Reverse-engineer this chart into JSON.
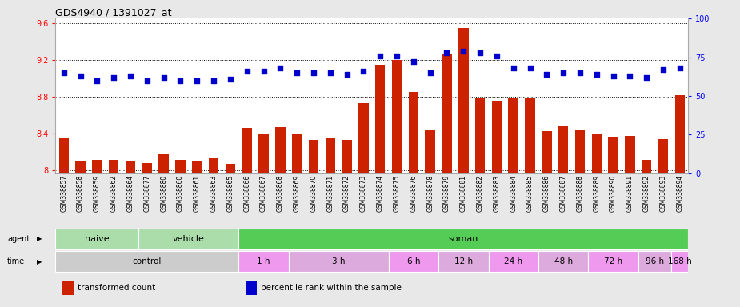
{
  "title": "GDS4940 / 1391027_at",
  "sample_labels": [
    "GSM338857",
    "GSM338858",
    "GSM338859",
    "GSM338862",
    "GSM338864",
    "GSM338877",
    "GSM338880",
    "GSM338860",
    "GSM338861",
    "GSM338863",
    "GSM338865",
    "GSM338866",
    "GSM338867",
    "GSM338868",
    "GSM338869",
    "GSM338870",
    "GSM338871",
    "GSM338872",
    "GSM338873",
    "GSM338874",
    "GSM338875",
    "GSM338876",
    "GSM338878",
    "GSM338879",
    "GSM338881",
    "GSM338882",
    "GSM338883",
    "GSM338884",
    "GSM338885",
    "GSM338886",
    "GSM338887",
    "GSM338888",
    "GSM338889",
    "GSM338890",
    "GSM338891",
    "GSM338892",
    "GSM338893",
    "GSM338894"
  ],
  "bar_values": [
    8.35,
    8.1,
    8.12,
    8.12,
    8.1,
    8.08,
    8.18,
    8.12,
    8.1,
    8.13,
    8.07,
    8.46,
    8.4,
    8.47,
    8.39,
    8.33,
    8.35,
    8.33,
    8.73,
    9.15,
    9.2,
    8.85,
    8.45,
    9.27,
    9.55,
    8.78,
    8.76,
    8.78,
    8.78,
    8.43,
    8.49,
    8.45,
    8.4,
    8.37,
    8.38,
    8.12,
    8.34,
    8.82
  ],
  "percentile_values": [
    65,
    63,
    60,
    62,
    63,
    60,
    62,
    60,
    60,
    60,
    61,
    66,
    66,
    68,
    65,
    65,
    65,
    64,
    66,
    76,
    76,
    72,
    65,
    78,
    79,
    78,
    76,
    68,
    68,
    64,
    65,
    65,
    64,
    63,
    63,
    62,
    67,
    68
  ],
  "bar_color": "#cc2200",
  "dot_color": "#0000cc",
  "ylim_left": [
    7.97,
    9.65
  ],
  "ylim_right": [
    0,
    100
  ],
  "yticks_left": [
    8.0,
    8.4,
    8.8,
    9.2,
    9.6
  ],
  "ytick_labels_left": [
    "8",
    "8.4",
    "8.8",
    "9.2",
    "9.6"
  ],
  "yticks_right": [
    0,
    25,
    50,
    75,
    100
  ],
  "ytick_labels_right": [
    "0",
    "25",
    "50",
    "75",
    "100"
  ],
  "agent_groups": [
    {
      "label": "naive",
      "start": 0,
      "end": 5,
      "color": "#aaddaa"
    },
    {
      "label": "vehicle",
      "start": 5,
      "end": 11,
      "color": "#aaddaa"
    },
    {
      "label": "soman",
      "start": 11,
      "end": 38,
      "color": "#55cc55"
    }
  ],
  "time_groups": [
    {
      "label": "control",
      "start": 0,
      "end": 11,
      "color": "#cccccc"
    },
    {
      "label": "1 h",
      "start": 11,
      "end": 14,
      "color": "#ee99ee"
    },
    {
      "label": "3 h",
      "start": 14,
      "end": 20,
      "color": "#ddaadd"
    },
    {
      "label": "6 h",
      "start": 20,
      "end": 23,
      "color": "#ee99ee"
    },
    {
      "label": "12 h",
      "start": 23,
      "end": 26,
      "color": "#ddaadd"
    },
    {
      "label": "24 h",
      "start": 26,
      "end": 29,
      "color": "#ee99ee"
    },
    {
      "label": "48 h",
      "start": 29,
      "end": 32,
      "color": "#ddaadd"
    },
    {
      "label": "72 h",
      "start": 32,
      "end": 35,
      "color": "#ee99ee"
    },
    {
      "label": "96 h",
      "start": 35,
      "end": 37,
      "color": "#ddaadd"
    },
    {
      "label": "168 h",
      "start": 37,
      "end": 38,
      "color": "#ee99ee"
    }
  ],
  "legend_items": [
    {
      "label": "transformed count",
      "color": "#cc2200"
    },
    {
      "label": "percentile rank within the sample",
      "color": "#0000cc"
    }
  ],
  "background_color": "#e8e8e8",
  "plot_bg_color": "#ffffff",
  "xtick_bg_color": "#d8d8d8"
}
